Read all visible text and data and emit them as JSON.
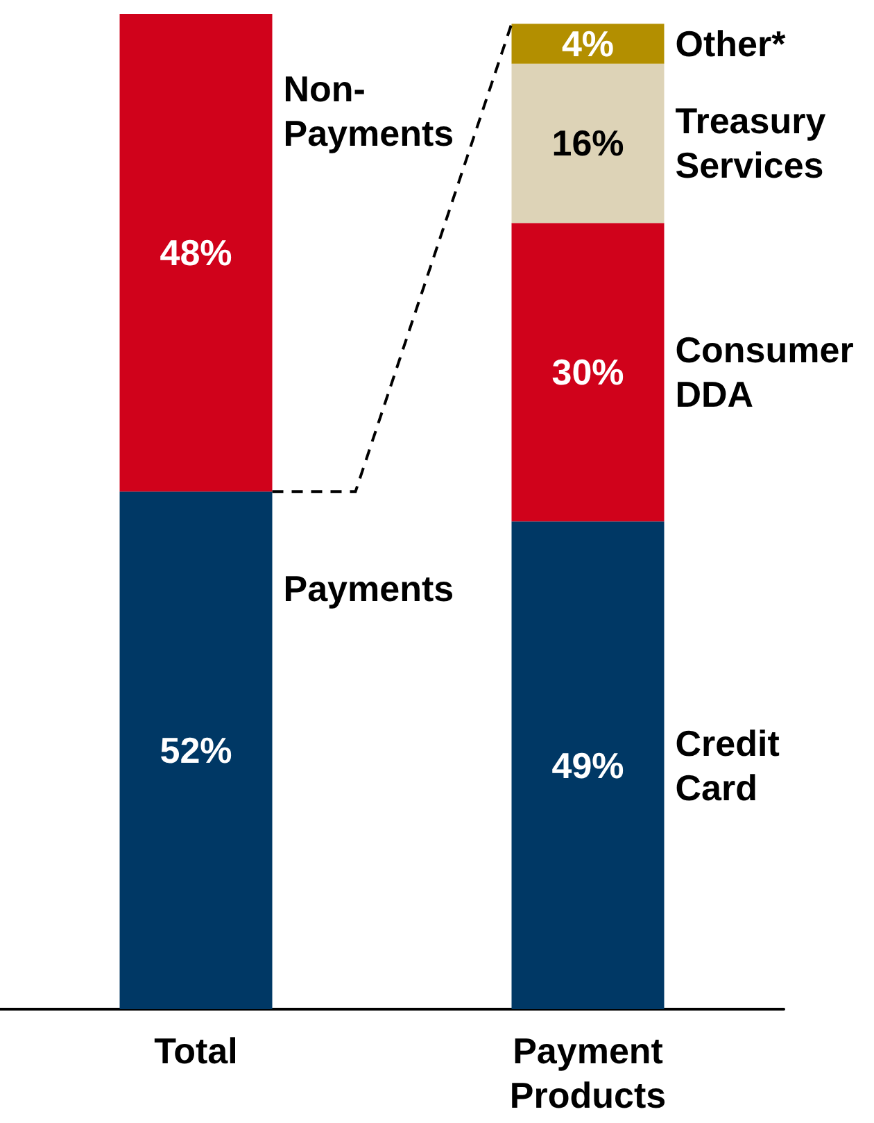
{
  "chart_data": {
    "type": "bar",
    "stacked": true,
    "categories": [
      "Total",
      "Payment\nProducts"
    ],
    "tick_labels": "x",
    "legend": false,
    "grid": false,
    "series": [
      {
        "name": "Payments",
        "color": "#003865",
        "values": [
          52,
          null
        ],
        "value_labels": [
          "52%",
          null
        ]
      },
      {
        "name": "Non-\nPayments",
        "color": "#d0021b",
        "values": [
          48,
          null
        ],
        "value_labels": [
          "48%",
          null
        ]
      },
      {
        "name": "Credit\nCard",
        "color": "#003865",
        "values": [
          null,
          49
        ],
        "value_labels": [
          null,
          "49%"
        ]
      },
      {
        "name": "Consumer\nDDA",
        "color": "#d0021b",
        "values": [
          null,
          30
        ],
        "value_labels": [
          null,
          "30%"
        ]
      },
      {
        "name": "Treasury\nServices",
        "color": "#ddd3b7",
        "values": [
          null,
          16
        ],
        "value_labels": [
          null,
          "16%"
        ]
      },
      {
        "name": "Other*",
        "color": "#b38f00",
        "values": [
          null,
          4
        ],
        "value_labels": [
          null,
          "4%"
        ]
      }
    ]
  }
}
